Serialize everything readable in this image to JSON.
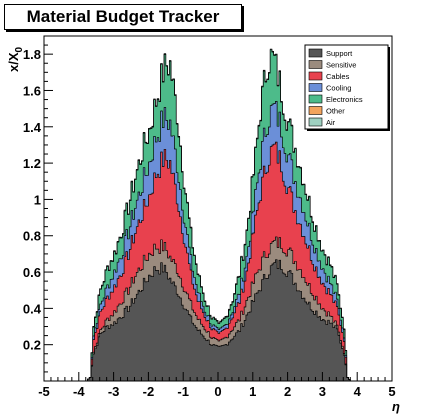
{
  "chart_data": {
    "type": "area",
    "stacked": true,
    "title": "Material Budget Tracker",
    "xlabel": "η",
    "ylabel": "x/X",
    "ylabel_subscript": "0",
    "xlim": [
      -5,
      5
    ],
    "ylim": [
      0,
      1.9
    ],
    "grid": false,
    "legend_position": "top-right",
    "x_ticks": [
      "-5",
      "-4",
      "-3",
      "-2",
      "-1",
      "0",
      "1",
      "2",
      "3",
      "4",
      "5"
    ],
    "y_ticks": [
      "0.2",
      "0.4",
      "0.6",
      "0.8",
      "1",
      "1.2",
      "1.4",
      "1.6",
      "1.8"
    ],
    "x": [
      -3.8,
      -3.7,
      -3.6,
      -3.4,
      -3.2,
      -3.0,
      -2.8,
      -2.6,
      -2.4,
      -2.2,
      -2.0,
      -1.8,
      -1.6,
      -1.5,
      -1.4,
      -1.2,
      -1.0,
      -0.8,
      -0.6,
      -0.4,
      -0.2,
      0.0,
      0.2,
      0.4,
      0.6,
      0.8,
      1.0,
      1.2,
      1.4,
      1.5,
      1.6,
      1.8,
      2.0,
      2.2,
      2.4,
      2.6,
      2.8,
      3.0,
      3.2,
      3.4,
      3.6,
      3.7,
      3.8
    ],
    "series": [
      {
        "name": "Support",
        "color": "#555555",
        "values": [
          0,
          0.02,
          0.15,
          0.26,
          0.3,
          0.32,
          0.36,
          0.4,
          0.46,
          0.52,
          0.58,
          0.62,
          0.62,
          0.6,
          0.56,
          0.5,
          0.42,
          0.34,
          0.28,
          0.24,
          0.2,
          0.18,
          0.2,
          0.24,
          0.28,
          0.36,
          0.44,
          0.52,
          0.6,
          0.62,
          0.64,
          0.64,
          0.6,
          0.54,
          0.48,
          0.42,
          0.38,
          0.34,
          0.32,
          0.28,
          0.15,
          0.02,
          0
        ]
      },
      {
        "name": "Sensitive",
        "color": "#9b8b7e",
        "values": [
          0,
          0,
          0.01,
          0.02,
          0.04,
          0.06,
          0.08,
          0.1,
          0.12,
          0.12,
          0.12,
          0.12,
          0.12,
          0.12,
          0.12,
          0.12,
          0.1,
          0.08,
          0.06,
          0.05,
          0.04,
          0.03,
          0.04,
          0.05,
          0.06,
          0.08,
          0.1,
          0.12,
          0.12,
          0.12,
          0.12,
          0.12,
          0.12,
          0.12,
          0.12,
          0.1,
          0.08,
          0.06,
          0.04,
          0.02,
          0.01,
          0,
          0
        ]
      },
      {
        "name": "Cables",
        "color": "#e8414e",
        "values": [
          0,
          0,
          0.07,
          0.1,
          0.12,
          0.14,
          0.16,
          0.2,
          0.24,
          0.28,
          0.32,
          0.4,
          0.48,
          0.5,
          0.52,
          0.4,
          0.28,
          0.16,
          0.1,
          0.07,
          0.05,
          0.04,
          0.05,
          0.07,
          0.1,
          0.16,
          0.28,
          0.4,
          0.5,
          0.52,
          0.52,
          0.44,
          0.34,
          0.28,
          0.24,
          0.2,
          0.16,
          0.14,
          0.12,
          0.1,
          0.07,
          0,
          0
        ]
      },
      {
        "name": "Cooling",
        "color": "#6b8fd8",
        "values": [
          0,
          0,
          0.02,
          0.04,
          0.06,
          0.08,
          0.1,
          0.12,
          0.14,
          0.16,
          0.18,
          0.2,
          0.22,
          0.22,
          0.22,
          0.18,
          0.12,
          0.08,
          0.05,
          0.03,
          0.02,
          0.02,
          0.02,
          0.03,
          0.05,
          0.08,
          0.12,
          0.18,
          0.22,
          0.22,
          0.22,
          0.2,
          0.18,
          0.16,
          0.14,
          0.12,
          0.1,
          0.08,
          0.06,
          0.04,
          0.02,
          0,
          0
        ]
      },
      {
        "name": "Electronics",
        "color": "#4dbb8a",
        "values": [
          0,
          0,
          0.05,
          0.08,
          0.1,
          0.1,
          0.12,
          0.14,
          0.16,
          0.18,
          0.18,
          0.2,
          0.26,
          0.3,
          0.32,
          0.28,
          0.2,
          0.14,
          0.1,
          0.06,
          0.04,
          0.03,
          0.04,
          0.06,
          0.1,
          0.14,
          0.2,
          0.28,
          0.32,
          0.3,
          0.26,
          0.2,
          0.18,
          0.18,
          0.16,
          0.14,
          0.12,
          0.1,
          0.1,
          0.08,
          0.05,
          0,
          0
        ]
      },
      {
        "name": "Other",
        "color": "#f3a45d",
        "values": [
          0,
          0,
          0,
          0,
          0,
          0,
          0,
          0,
          0,
          0,
          0,
          0,
          0,
          0,
          0,
          0,
          0,
          0,
          0,
          0,
          0,
          0,
          0,
          0,
          0,
          0,
          0,
          0,
          0,
          0,
          0,
          0,
          0,
          0,
          0,
          0,
          0,
          0,
          0,
          0,
          0,
          0,
          0
        ]
      },
      {
        "name": "Air",
        "color": "#9fd1c1",
        "values": [
          0,
          0,
          0.003,
          0.004,
          0.004,
          0.004,
          0.004,
          0.004,
          0.004,
          0.004,
          0.004,
          0.004,
          0.004,
          0.004,
          0.004,
          0.004,
          0.004,
          0.004,
          0.004,
          0.004,
          0.004,
          0.004,
          0.004,
          0.004,
          0.004,
          0.004,
          0.004,
          0.004,
          0.004,
          0.004,
          0.004,
          0.004,
          0.004,
          0.004,
          0.004,
          0.004,
          0.004,
          0.004,
          0.004,
          0.004,
          0.003,
          0,
          0
        ]
      }
    ]
  }
}
